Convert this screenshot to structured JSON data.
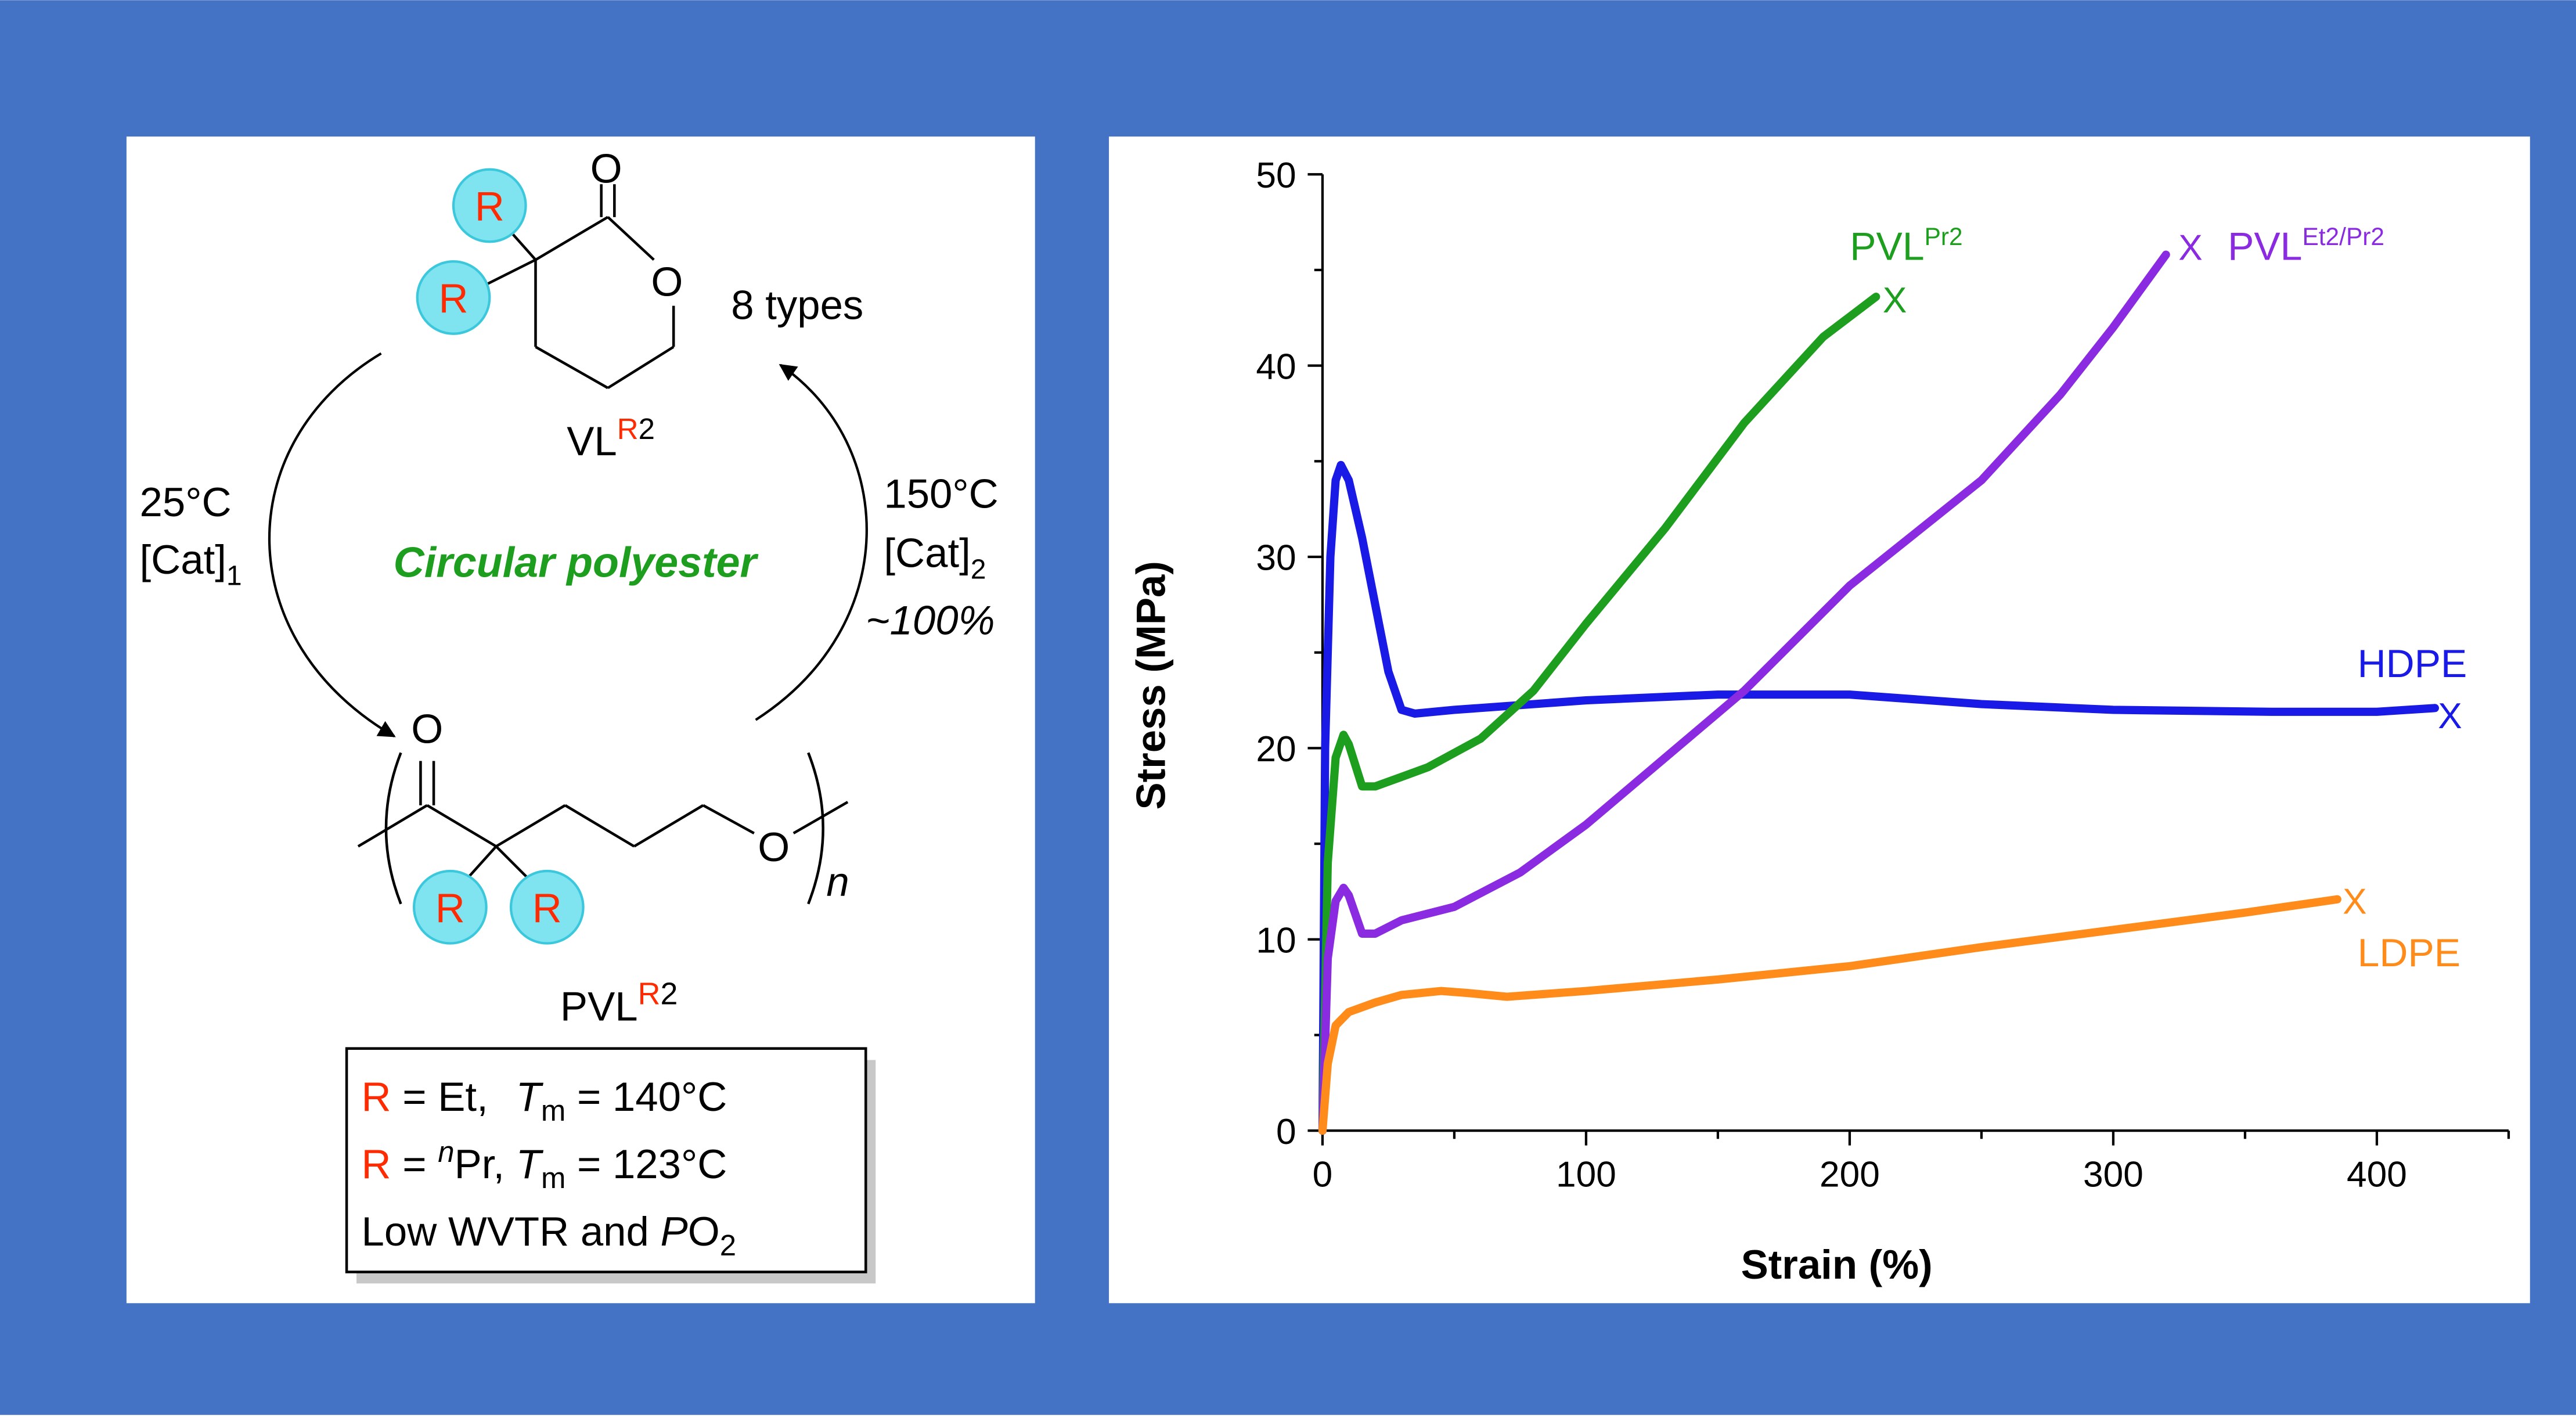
{
  "colors": {
    "background": "#4472C4",
    "panel": "#ffffff",
    "r_group_fill": "#7FE3F0",
    "r_label": "#FF2A00",
    "green_text": "#1E9E1E"
  },
  "scheme": {
    "monomer": {
      "label_main": "VL",
      "label_sup": "R",
      "label_sub": "2",
      "ring_oxygen": "O",
      "carbonyl_oxygen": "O",
      "r_group": "R"
    },
    "types_label": "8 types",
    "forward": {
      "temperature": "25°C",
      "catalyst": "[Cat]",
      "catalyst_sub": "1"
    },
    "reverse": {
      "temperature": "150°C",
      "catalyst": "[Cat]",
      "catalyst_sub": "2",
      "yield": "~100%"
    },
    "center_label": "Circular polyester",
    "polymer": {
      "label_main": "PVL",
      "label_sup": "R",
      "label_sup2": "2",
      "repeat": "n",
      "carbonyl_oxygen": "O",
      "chain_oxygen": "O",
      "r_group": "R"
    },
    "legend": {
      "line1": {
        "r": "R",
        "text": " = Et,  ",
        "tm": "T",
        "tm_sub": "m",
        "value": " = 140°C"
      },
      "line2": {
        "r": "R",
        "text": " = ",
        "n": "n",
        "text2": "Pr, ",
        "tm": "T",
        "tm_sub": "m",
        "value": " = 123°C"
      },
      "line3": {
        "text": "Low WVTR and ",
        "p": "P",
        "o": "O",
        "sub": "2"
      }
    }
  },
  "chart_data": {
    "type": "line",
    "xlabel": "Strain (%)",
    "ylabel": "Stress (MPa)",
    "xlim": [
      0,
      450
    ],
    "ylim": [
      0,
      50
    ],
    "xticks": [
      0,
      100,
      200,
      300,
      400
    ],
    "yticks": [
      0,
      10,
      20,
      30,
      40,
      50
    ],
    "end_marker": "X",
    "series": [
      {
        "name": "HDPE",
        "color": "#1A1AE6",
        "x": [
          0,
          1,
          3,
          5,
          7,
          10,
          15,
          20,
          25,
          30,
          35,
          50,
          100,
          150,
          200,
          250,
          300,
          360,
          400,
          422
        ],
        "y": [
          0,
          20,
          30,
          34,
          34.8,
          34,
          31,
          27.5,
          24,
          22,
          21.8,
          22,
          22.5,
          22.8,
          22.8,
          22.3,
          22,
          21.9,
          21.9,
          22.1
        ]
      },
      {
        "name": "PVL",
        "name_sup": "Pr2",
        "color": "#1E9E1E",
        "x": [
          0,
          2,
          5,
          8,
          10,
          15,
          20,
          30,
          40,
          60,
          80,
          100,
          130,
          160,
          190,
          210
        ],
        "y": [
          0,
          14,
          19.5,
          20.7,
          20.2,
          18,
          18,
          18.5,
          19,
          20.5,
          23,
          26.5,
          31.5,
          37,
          41.5,
          43.6
        ]
      },
      {
        "name": "PVL",
        "name_sup": "Et2/Pr2",
        "color": "#8A2BE2",
        "x": [
          0,
          2,
          5,
          8,
          10,
          15,
          20,
          30,
          50,
          75,
          100,
          130,
          160,
          200,
          250,
          280,
          300,
          320
        ],
        "y": [
          0,
          9,
          12,
          12.7,
          12.3,
          10.3,
          10.3,
          11,
          11.7,
          13.5,
          16,
          19.5,
          23,
          28.5,
          34,
          38.5,
          42,
          45.8
        ]
      },
      {
        "name": "LDPE",
        "color": "#FF8C1A",
        "x": [
          0,
          2,
          5,
          10,
          20,
          30,
          45,
          55,
          70,
          100,
          150,
          200,
          250,
          300,
          350,
          385
        ],
        "y": [
          0,
          3.5,
          5.5,
          6.2,
          6.7,
          7.1,
          7.3,
          7.2,
          7.0,
          7.3,
          7.9,
          8.6,
          9.6,
          10.5,
          11.4,
          12.1
        ]
      }
    ]
  }
}
